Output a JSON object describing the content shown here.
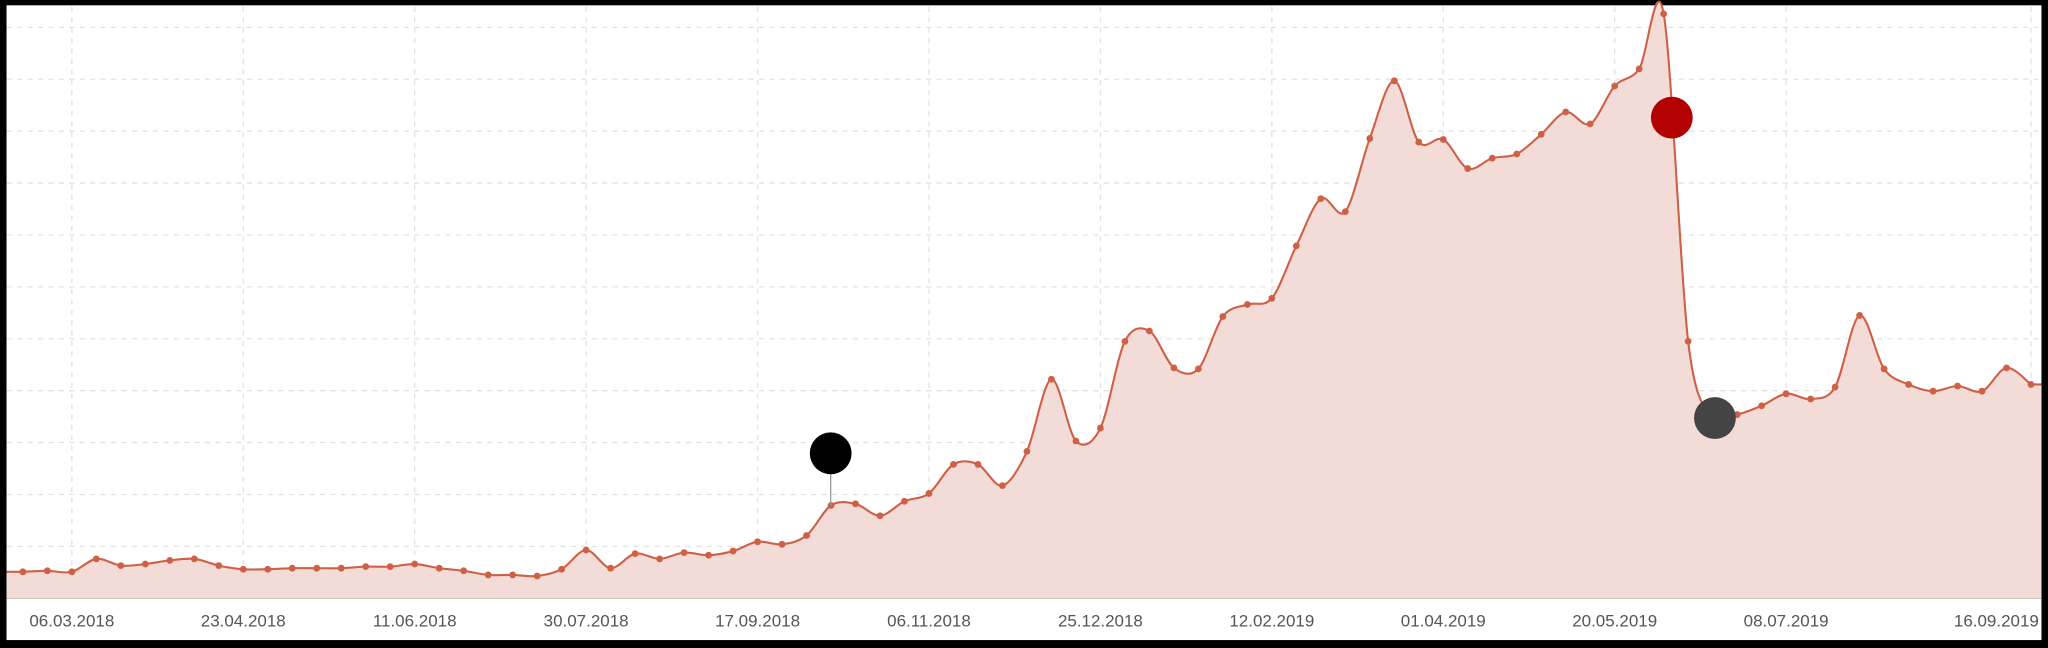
{
  "chart_data": {
    "type": "area",
    "categories": [
      null,
      null,
      "06.03.2018",
      null,
      null,
      null,
      null,
      null,
      null,
      "23.04.2018",
      null,
      null,
      null,
      null,
      null,
      null,
      "11.06.2018",
      null,
      null,
      null,
      null,
      null,
      null,
      "30.07.2018",
      null,
      null,
      null,
      null,
      null,
      null,
      "17.09.2018",
      null,
      null,
      null,
      null,
      null,
      null,
      "06.11.2018",
      null,
      null,
      null,
      null,
      null,
      null,
      "25.12.2018",
      null,
      null,
      null,
      null,
      null,
      null,
      "12.02.2019",
      null,
      null,
      null,
      null,
      null,
      null,
      "01.04.2019",
      null,
      null,
      null,
      null,
      null,
      null,
      "20.05.2019",
      null,
      null,
      null,
      null,
      null,
      null,
      "08.07.2019",
      null,
      null,
      null,
      null,
      null,
      null,
      null,
      null,
      null,
      "16.09.2019"
    ],
    "values": [
      0.51,
      0.53,
      0.51,
      0.76,
      0.63,
      0.66,
      0.73,
      0.76,
      0.63,
      0.56,
      0.56,
      0.58,
      0.58,
      0.58,
      0.61,
      0.61,
      0.66,
      0.58,
      0.53,
      0.45,
      0.45,
      0.43,
      0.56,
      0.93,
      0.58,
      0.86,
      0.76,
      0.88,
      0.83,
      0.91,
      1.09,
      1.04,
      1.21,
      1.79,
      1.82,
      1.59,
      1.87,
      2.02,
      2.58,
      2.58,
      2.17,
      2.83,
      4.22,
      3.03,
      3.28,
      4.95,
      5.15,
      4.44,
      4.42,
      5.43,
      5.66,
      5.78,
      6.79,
      7.7,
      7.45,
      8.86,
      9.97,
      8.79,
      8.84,
      8.28,
      8.48,
      8.56,
      8.94,
      9.37,
      9.14,
      9.87,
      10.2,
      11.26,
      4.95,
      3.48,
      3.54,
      3.71,
      3.94,
      3.84,
      4.07,
      5.45,
      4.42,
      4.12,
      3.99,
      4.09,
      3.99,
      4.44,
      4.12
    ],
    "color": "#cf5f45",
    "fill_color": "#f3dcd7",
    "ylim": [
      0,
      11.4
    ],
    "yticks": [
      0,
      1,
      2,
      3,
      4,
      5,
      6,
      7,
      8,
      9,
      10,
      11
    ],
    "grid": true
  }
}
